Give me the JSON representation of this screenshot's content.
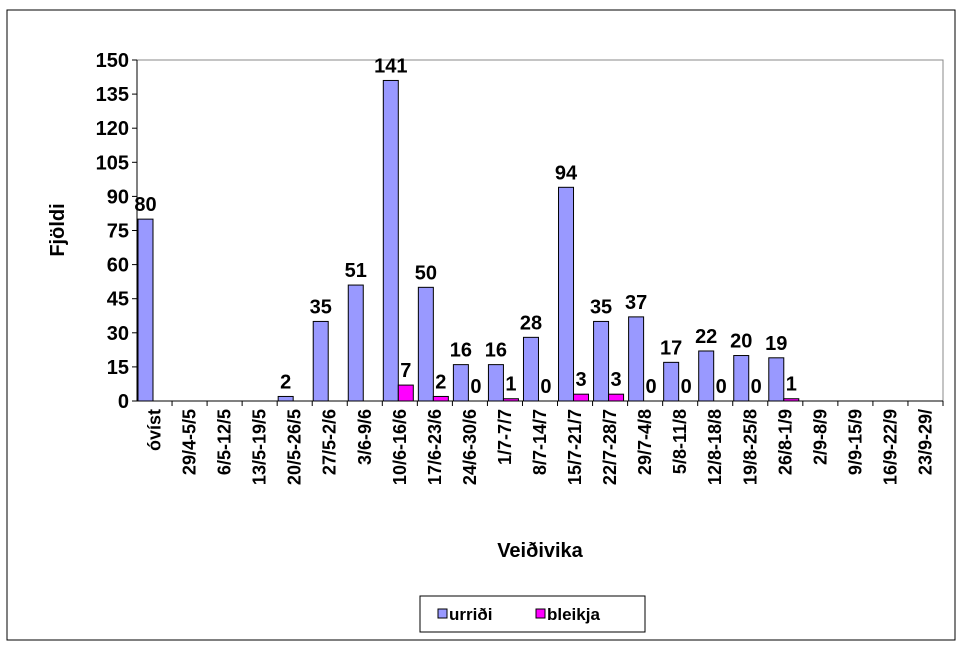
{
  "chart_data": {
    "type": "bar",
    "y_label": "Fjöldi",
    "x_label": "Veiðivika",
    "categories": [
      "óvíst",
      "29/4-5/5",
      "6/5-12/5",
      "13/5-19/5",
      "20/5-26/5",
      "27/5-2/6",
      "3/6-9/6",
      "10/6-16/6",
      "17/6-23/6",
      "24/6-30/6",
      "1/7-7/7",
      "8/7-14/7",
      "15/7-21/7",
      "22/7-28/7",
      "29/7-4/8",
      "5/8-11/8",
      "12/8-18/8",
      "19/8-25/8",
      "26/8-1/9",
      "2/9-8/9",
      "9/9-15/9",
      "16/9-22/9",
      "23/9-29/"
    ],
    "series": [
      {
        "name": "urriði",
        "color": "#9999ff",
        "values": [
          80,
          null,
          null,
          null,
          2,
          35,
          51,
          141,
          50,
          16,
          16,
          28,
          94,
          35,
          37,
          17,
          22,
          20,
          19,
          null,
          null,
          null,
          null
        ]
      },
      {
        "name": "bleikja",
        "color": "#ff00ff",
        "values": [
          null,
          null,
          null,
          null,
          null,
          null,
          null,
          7,
          2,
          0,
          1,
          0,
          3,
          3,
          0,
          0,
          0,
          0,
          1,
          null,
          null,
          null,
          null
        ]
      }
    ],
    "ylim": [
      0,
      150
    ],
    "yticks": [
      0,
      15,
      30,
      45,
      60,
      75,
      90,
      105,
      120,
      135,
      150
    ],
    "legend": "bottom"
  }
}
